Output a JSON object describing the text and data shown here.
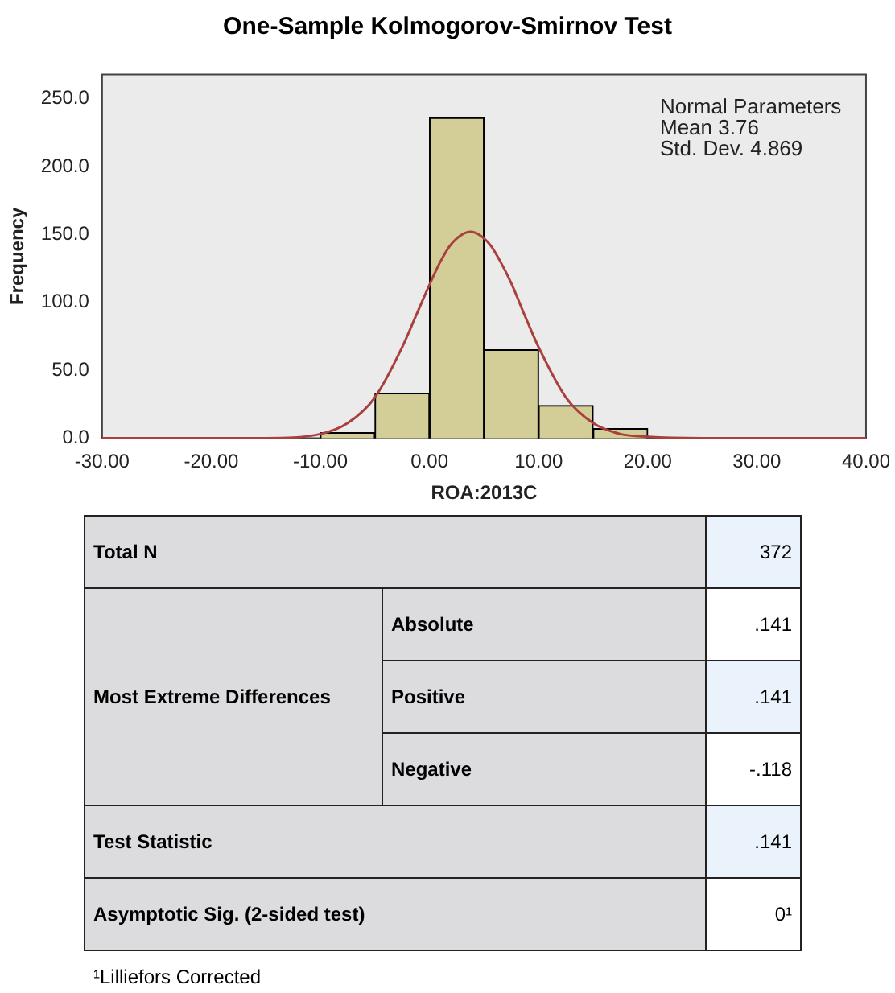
{
  "chart_data": [
    {
      "type": "histogram",
      "title": "One-Sample Kolmogorov-Smirnov Test",
      "xlabel": "ROA:2013C",
      "ylabel": "Frequency",
      "bins": [
        -10,
        -5,
        0,
        5,
        10,
        15,
        20
      ],
      "values": [
        4,
        33,
        236,
        65,
        24,
        7
      ],
      "color": "#d3ce97",
      "series": [
        {
          "type": "line",
          "color": "#a9403e",
          "x": [
            -30,
            -15,
            -10,
            -7.5,
            -5,
            -2.5,
            -1.25,
            0,
            1,
            2,
            3.76,
            5.5,
            6.5,
            7.5,
            8.75,
            10,
            12.5,
            15,
            17.5,
            20,
            25,
            40
          ],
          "values": [
            0,
            0,
            3,
            11,
            30,
            67,
            90,
            113,
            130,
            143,
            152,
            143,
            130,
            114,
            90,
            67,
            30,
            11,
            3,
            1,
            0,
            0
          ]
        }
      ],
      "xlim": [
        -30,
        40
      ],
      "xticks": [
        {
          "value": -30,
          "label": "-30.00"
        },
        {
          "value": -20,
          "label": "-20.00"
        },
        {
          "value": -10,
          "label": "-10.00"
        },
        {
          "value": 0,
          "label": "0.00"
        },
        {
          "value": 10,
          "label": "10.00"
        },
        {
          "value": 20,
          "label": "20.00"
        },
        {
          "value": 30,
          "label": "30.00"
        },
        {
          "value": 40,
          "label": "40.00"
        }
      ],
      "ylim": [
        0,
        268
      ],
      "yticks": [
        {
          "value": 0,
          "label": "0.0"
        },
        {
          "value": 50,
          "label": "50.0"
        },
        {
          "value": 100,
          "label": "100.0"
        },
        {
          "value": 150,
          "label": "150.0"
        },
        {
          "value": 200,
          "label": "200.0"
        },
        {
          "value": 250,
          "label": "250.0"
        }
      ],
      "annotations": [
        "Normal Parameters",
        "Mean 3.76",
        "Std. Dev. 4.869"
      ],
      "grid": false,
      "legend": false
    },
    {
      "type": "other",
      "annotations": [
        "Total N",
        "372",
        "Most Extreme Differences",
        "Absolute",
        ".141",
        "Positive",
        ".141",
        "Negative",
        "-.118",
        "Test Statistic",
        ".141",
        "Asymptotic Sig. (2-sided test)",
        "0¹",
        "¹Lilliefors Corrected"
      ]
    }
  ]
}
